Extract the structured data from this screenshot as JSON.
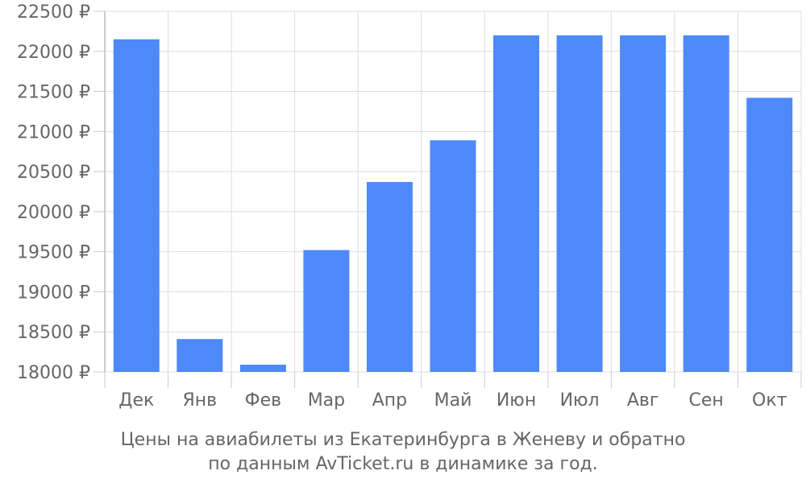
{
  "chart_data": {
    "type": "bar",
    "categories": [
      "Дек",
      "Янв",
      "Фев",
      "Мар",
      "Апр",
      "Май",
      "Июн",
      "Июл",
      "Авг",
      "Сен",
      "Окт"
    ],
    "values": [
      22150,
      18410,
      18090,
      19520,
      20370,
      20890,
      22200,
      22200,
      22200,
      22200,
      21420
    ],
    "ylim": [
      18000,
      22500
    ],
    "yticks": [
      18000,
      18500,
      19000,
      19500,
      20000,
      20500,
      21000,
      21500,
      22000,
      22500
    ],
    "ytick_suffix": " ₽",
    "grid": true,
    "bar_color": "#4d89f9",
    "grid_color": "#dddddd",
    "caption_line1": "Цены на авиабилеты из Екатеринбурга в Женеву и обратно",
    "caption_line2": "по данным AvTicket.ru в динамике за год."
  }
}
